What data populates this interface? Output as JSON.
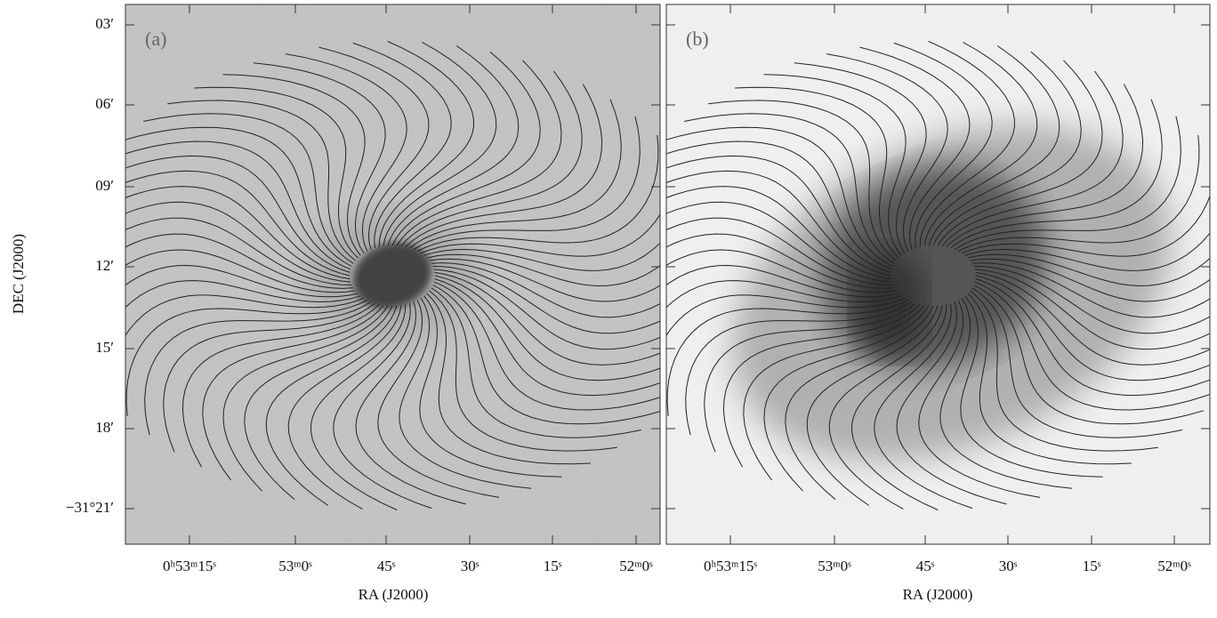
{
  "panels": [
    {
      "label": "(a)"
    },
    {
      "label": "(b)"
    }
  ],
  "x_axis": {
    "title": "RA (J2000)",
    "ticks": [
      "0ʰ53ᵐ15ˢ",
      "53ᵐ0ˢ",
      "45ˢ",
      "30ˢ",
      "15ˢ",
      "52ᵐ0ˢ"
    ]
  },
  "y_axis": {
    "title": "DEC (J2000)",
    "ticks": [
      "03′",
      "06′",
      "09′",
      "12′",
      "15′",
      "18′",
      "−31°21′"
    ]
  }
}
